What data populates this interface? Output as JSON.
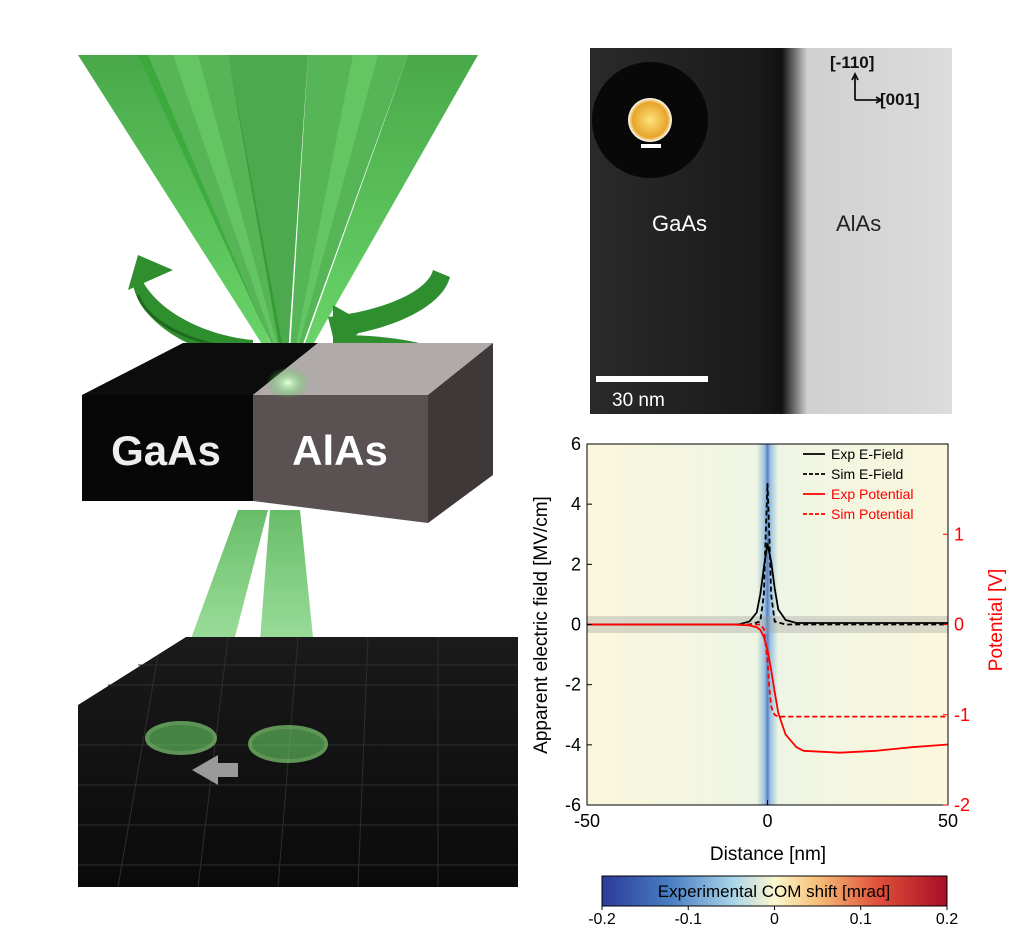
{
  "illustration": {
    "left_material": "GaAs",
    "right_material": "AlAs",
    "beam_color": "#22a022"
  },
  "stem_image": {
    "left_label": "GaAs",
    "right_label": "AlAs",
    "axis_vertical": "[-110]",
    "axis_horizontal": "[001]",
    "scale_bar_label": "30 nm"
  },
  "chart_data": {
    "type": "line",
    "xlabel": "Distance [nm]",
    "ylabel": "Apparent electric field [MV/cm]",
    "y2label": "Potential [V]",
    "xlim": [
      -50,
      50
    ],
    "ylim": [
      -6,
      6
    ],
    "y2lim": [
      -2,
      2
    ],
    "xticks": [
      -50,
      0,
      50
    ],
    "yticks": [
      -6,
      -4,
      -2,
      0,
      2,
      4,
      6
    ],
    "y2ticks": [
      -2,
      -1,
      0,
      1
    ],
    "legend_position": "top-right",
    "series": [
      {
        "name": "Exp E-Field",
        "axis": "left",
        "color": "#000000",
        "dash": "solid",
        "x": [
          -50,
          -20,
          -8,
          -5,
          -3,
          -2,
          -1,
          0,
          1,
          2,
          3,
          5,
          8,
          20,
          50
        ],
        "y": [
          0,
          0,
          0,
          0.1,
          0.4,
          1.0,
          1.9,
          2.7,
          2.1,
          1.2,
          0.5,
          0.15,
          0.05,
          0.05,
          0.05
        ]
      },
      {
        "name": "Sim E-Field",
        "axis": "left",
        "color": "#000000",
        "dash": "dashed",
        "x": [
          -50,
          -5,
          -2,
          -1,
          -0.5,
          0,
          0.5,
          1,
          2,
          5,
          50
        ],
        "y": [
          0,
          0,
          0.1,
          1.0,
          3.0,
          4.7,
          3.0,
          1.0,
          0.1,
          0,
          0
        ]
      },
      {
        "name": "Exp Potential",
        "axis": "right",
        "color": "#ff0000",
        "dash": "solid",
        "x": [
          -50,
          -10,
          -5,
          -3,
          -2,
          -1,
          0,
          1,
          2,
          3,
          5,
          8,
          10,
          20,
          30,
          40,
          50
        ],
        "y": [
          0,
          0,
          -0.01,
          -0.03,
          -0.06,
          -0.14,
          -0.28,
          -0.5,
          -0.75,
          -0.98,
          -1.22,
          -1.36,
          -1.4,
          -1.42,
          -1.4,
          -1.36,
          -1.33
        ]
      },
      {
        "name": "Sim Potential",
        "axis": "right",
        "color": "#ff0000",
        "dash": "dashed",
        "x": [
          -50,
          -2,
          -1,
          0,
          0.5,
          1,
          1.5,
          2,
          3,
          50
        ],
        "y": [
          0,
          0,
          -0.05,
          -0.4,
          -0.7,
          -0.9,
          -0.97,
          -1.0,
          -1.02,
          -1.02
        ]
      }
    ],
    "colorbar": {
      "label": "Experimental COM shift [mrad]",
      "ticks": [
        -0.2,
        -0.1,
        0,
        0.1,
        0.2
      ],
      "tick_labels": [
        "-0.2",
        "-0.1",
        "0",
        "0.1",
        "0.2"
      ]
    }
  }
}
